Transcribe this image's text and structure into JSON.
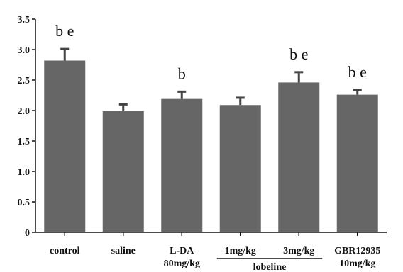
{
  "chart_data": {
    "type": "bar",
    "categories": [
      [
        "control"
      ],
      [
        "saline"
      ],
      [
        "L-DA",
        "80mg/kg"
      ],
      [
        "1mg/kg"
      ],
      [
        "3mg/kg"
      ],
      [
        "GBR12935",
        "10mg/kg"
      ]
    ],
    "values": [
      2.82,
      1.99,
      2.19,
      2.09,
      2.46,
      2.26
    ],
    "errors": [
      0.19,
      0.11,
      0.12,
      0.12,
      0.17,
      0.08
    ],
    "annotations": [
      "b e",
      "",
      "b",
      "",
      "b e",
      "b e"
    ],
    "group_labels": [
      {
        "label": "lobeline",
        "from": 3,
        "to": 4
      }
    ],
    "yticks": [
      "0",
      "0.5",
      "1.0",
      "1.5",
      "2.0",
      "2.5",
      "3.0",
      "3.5"
    ],
    "ylim": [
      0,
      3.5
    ],
    "title": "",
    "xlabel": "",
    "ylabel": "",
    "grid": false,
    "colors": {
      "bar": "#666666",
      "error": "#444444",
      "axis": "#111111"
    }
  }
}
